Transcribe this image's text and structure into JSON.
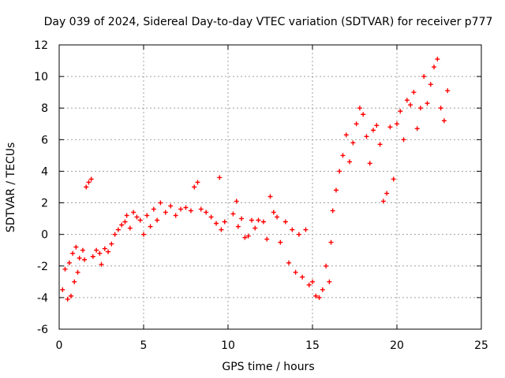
{
  "chart_data": {
    "type": "scatter",
    "title": "Day 039 of 2024, Sidereal Day-to-day VTEC variation (SDTVAR) for receiver p777",
    "xlabel": "GPS time / hours",
    "ylabel": "SDTVAR / TECUs",
    "xlim": [
      0,
      25
    ],
    "ylim": [
      -6,
      12
    ],
    "x_ticks": [
      0,
      5,
      10,
      15,
      20,
      25
    ],
    "y_ticks": [
      -6,
      -4,
      -2,
      0,
      2,
      4,
      6,
      8,
      10,
      12
    ],
    "grid": true,
    "marker": "+",
    "marker_color": "#ff0000",
    "series": [
      {
        "values_xy": [
          [
            0.2,
            -3.5
          ],
          [
            0.35,
            -2.2
          ],
          [
            0.5,
            -4.1
          ],
          [
            0.6,
            -1.8
          ],
          [
            0.7,
            -3.9
          ],
          [
            0.8,
            -1.2
          ],
          [
            0.9,
            -3.0
          ],
          [
            1.0,
            -0.8
          ],
          [
            1.1,
            -2.4
          ],
          [
            1.2,
            -1.5
          ],
          [
            1.4,
            -1.0
          ],
          [
            1.5,
            -1.6
          ],
          [
            1.6,
            3.0
          ],
          [
            1.75,
            3.3
          ],
          [
            1.9,
            3.5
          ],
          [
            2.0,
            -1.4
          ],
          [
            2.2,
            -1.0
          ],
          [
            2.4,
            -1.2
          ],
          [
            2.5,
            -1.9
          ],
          [
            2.7,
            -0.9
          ],
          [
            2.9,
            -1.1
          ],
          [
            3.1,
            -0.6
          ],
          [
            3.3,
            0.0
          ],
          [
            3.5,
            0.3
          ],
          [
            3.7,
            0.6
          ],
          [
            3.9,
            0.8
          ],
          [
            4.0,
            1.2
          ],
          [
            4.2,
            0.4
          ],
          [
            4.4,
            1.4
          ],
          [
            4.6,
            1.1
          ],
          [
            4.8,
            0.9
          ],
          [
            5.0,
            0.0
          ],
          [
            5.2,
            1.2
          ],
          [
            5.4,
            0.5
          ],
          [
            5.6,
            1.6
          ],
          [
            5.8,
            0.9
          ],
          [
            6.0,
            2.0
          ],
          [
            6.3,
            1.4
          ],
          [
            6.6,
            1.8
          ],
          [
            6.9,
            1.2
          ],
          [
            7.2,
            1.6
          ],
          [
            7.5,
            1.7
          ],
          [
            7.8,
            1.5
          ],
          [
            8.0,
            3.0
          ],
          [
            8.2,
            3.3
          ],
          [
            8.4,
            1.6
          ],
          [
            8.7,
            1.4
          ],
          [
            9.0,
            1.1
          ],
          [
            9.3,
            0.7
          ],
          [
            9.5,
            3.6
          ],
          [
            9.6,
            0.3
          ],
          [
            9.8,
            0.8
          ],
          [
            10.3,
            1.3
          ],
          [
            10.5,
            2.1
          ],
          [
            10.6,
            0.5
          ],
          [
            10.8,
            1.0
          ],
          [
            11.0,
            -0.2
          ],
          [
            11.2,
            -0.1
          ],
          [
            11.4,
            0.9
          ],
          [
            11.6,
            0.4
          ],
          [
            11.8,
            0.9
          ],
          [
            12.1,
            0.8
          ],
          [
            12.3,
            -0.3
          ],
          [
            12.5,
            2.4
          ],
          [
            12.7,
            1.4
          ],
          [
            12.9,
            1.1
          ],
          [
            13.1,
            -0.5
          ],
          [
            13.4,
            0.8
          ],
          [
            13.6,
            -1.8
          ],
          [
            13.8,
            0.3
          ],
          [
            14.0,
            -2.4
          ],
          [
            14.2,
            0.0
          ],
          [
            14.4,
            -2.7
          ],
          [
            14.6,
            0.3
          ],
          [
            14.8,
            -3.2
          ],
          [
            15.0,
            -3.0
          ],
          [
            15.2,
            -3.9
          ],
          [
            15.4,
            -4.0
          ],
          [
            15.6,
            -3.5
          ],
          [
            15.8,
            -2.0
          ],
          [
            16.0,
            -3.0
          ],
          [
            16.1,
            -0.5
          ],
          [
            16.2,
            1.5
          ],
          [
            16.4,
            2.8
          ],
          [
            16.6,
            4.0
          ],
          [
            16.8,
            5.0
          ],
          [
            17.0,
            6.3
          ],
          [
            17.2,
            4.6
          ],
          [
            17.4,
            5.8
          ],
          [
            17.6,
            7.0
          ],
          [
            17.8,
            8.0
          ],
          [
            18.0,
            7.6
          ],
          [
            18.2,
            6.2
          ],
          [
            18.4,
            4.5
          ],
          [
            18.6,
            6.6
          ],
          [
            18.8,
            6.9
          ],
          [
            19.0,
            5.7
          ],
          [
            19.2,
            2.1
          ],
          [
            19.4,
            2.6
          ],
          [
            19.6,
            6.8
          ],
          [
            19.8,
            3.5
          ],
          [
            20.0,
            7.0
          ],
          [
            20.2,
            7.8
          ],
          [
            20.4,
            6.0
          ],
          [
            20.6,
            8.5
          ],
          [
            20.8,
            8.2
          ],
          [
            21.0,
            9.0
          ],
          [
            21.2,
            6.7
          ],
          [
            21.4,
            8.0
          ],
          [
            21.6,
            10.0
          ],
          [
            21.8,
            8.3
          ],
          [
            22.0,
            9.5
          ],
          [
            22.2,
            10.6
          ],
          [
            22.4,
            11.1
          ],
          [
            22.6,
            8.0
          ],
          [
            22.8,
            7.2
          ],
          [
            23.0,
            9.1
          ]
        ]
      }
    ]
  }
}
